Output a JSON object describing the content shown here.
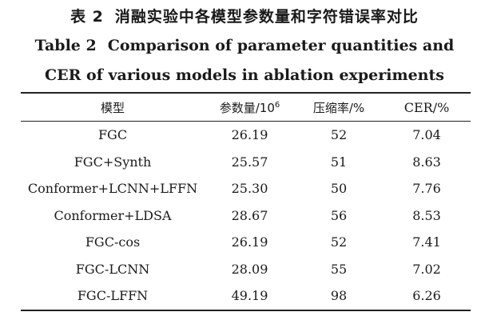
{
  "caption_zh": {
    "number": "表 2",
    "title": "消融实验中各模型参数量和字符错误率对比"
  },
  "caption_en": {
    "line1_number": "Table 2",
    "line1_text": "Comparison of parameter quantities and",
    "line2_text": "CER of various models in ablation experiments"
  },
  "table": {
    "headers": {
      "model": "模型",
      "params_base": "参数量/10",
      "params_exp": "6",
      "compression": "压缩率/%",
      "cer": "CER/%"
    },
    "rows": [
      [
        "FGC",
        "26.19",
        "52",
        "7.04"
      ],
      [
        "FGC+Synth",
        "25.57",
        "51",
        "8.63"
      ],
      [
        "Conformer+LCNN+LFFN",
        "25.30",
        "50",
        "7.76"
      ],
      [
        "Conformer+LDSA",
        "28.67",
        "56",
        "8.53"
      ],
      [
        "FGC-cos",
        "26.19",
        "52",
        "7.41"
      ],
      [
        "FGC-LCNN",
        "28.09",
        "55",
        "7.02"
      ],
      [
        "FGC-LFFN",
        "49.19",
        "98",
        "6.26"
      ]
    ]
  }
}
